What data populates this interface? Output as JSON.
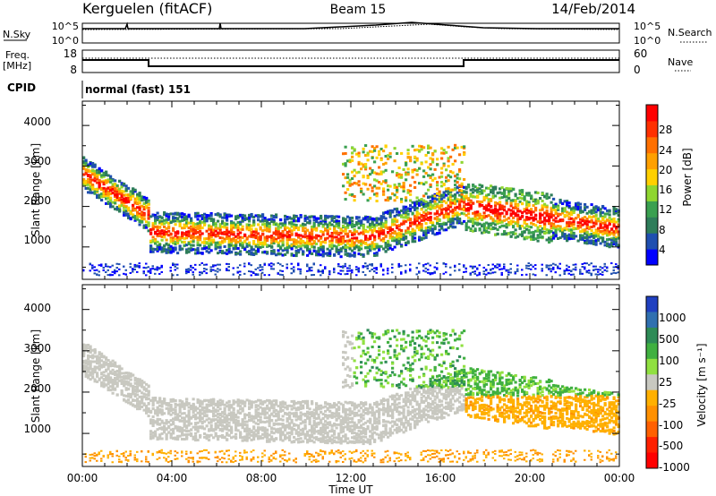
{
  "header": {
    "station": "Kerguelen (fitACF)",
    "beam": "Beam 15",
    "date": "14/Feb/2014"
  },
  "strips": {
    "nsky_label": "N.Sky",
    "nsky_ticks": [
      "10^5",
      "10^0"
    ],
    "nsearch_label": "N.Search",
    "nsearch_ticks": [
      "10^5",
      "10^0"
    ],
    "freq_label": [
      "Freq.",
      "[MHz]"
    ],
    "freq_ticks": [
      "18",
      "8"
    ],
    "nave_label": "Nave",
    "nave_ticks": [
      "60",
      "0"
    ],
    "cpid_label": "CPID",
    "cpid_value": "normal (fast) 151"
  },
  "colors": {
    "power": [
      "#0000ff",
      "#1f4fb0",
      "#2e7d5a",
      "#3aa050",
      "#8fd630",
      "#ffd000",
      "#ffa000",
      "#ff7000",
      "#ff3000",
      "#ff0000"
    ],
    "velocity": [
      "#2040c0",
      "#3070b0",
      "#2e8b57",
      "#40b040",
      "#90e040",
      "#c8c8c0",
      "#ffb000",
      "#ff9000",
      "#ff6000",
      "#ff2000",
      "#ff0000"
    ]
  },
  "chart_data": [
    {
      "type": "heatmap",
      "title": "Power",
      "xlabel": "",
      "ylabel": "Slant Range [km]",
      "x_ticks": [
        "00:00",
        "04:00",
        "08:00",
        "12:00",
        "16:00",
        "20:00",
        "00:00"
      ],
      "y_ticks": [
        "1000",
        "2000",
        "3000",
        "4000"
      ],
      "ylim": [
        200,
        4600
      ],
      "colorbar_label": "Power [dB]",
      "colorbar_ticks": [
        "4",
        "8",
        "12",
        "16",
        "20",
        "24",
        "28"
      ],
      "colorbar_range": [
        0,
        32
      ]
    },
    {
      "type": "heatmap",
      "title": "Velocity",
      "xlabel": "Time UT",
      "ylabel": "Slant Range [km]",
      "x_ticks": [
        "00:00",
        "04:00",
        "08:00",
        "12:00",
        "16:00",
        "20:00",
        "00:00"
      ],
      "y_ticks": [
        "1000",
        "2000",
        "3000",
        "4000"
      ],
      "ylim": [
        200,
        4600
      ],
      "colorbar_label": "Velocity [m s⁻¹]",
      "colorbar_ticks": [
        "1000",
        "500",
        "100",
        "25",
        "-25",
        "-100",
        "-500",
        "-1000"
      ]
    }
  ]
}
